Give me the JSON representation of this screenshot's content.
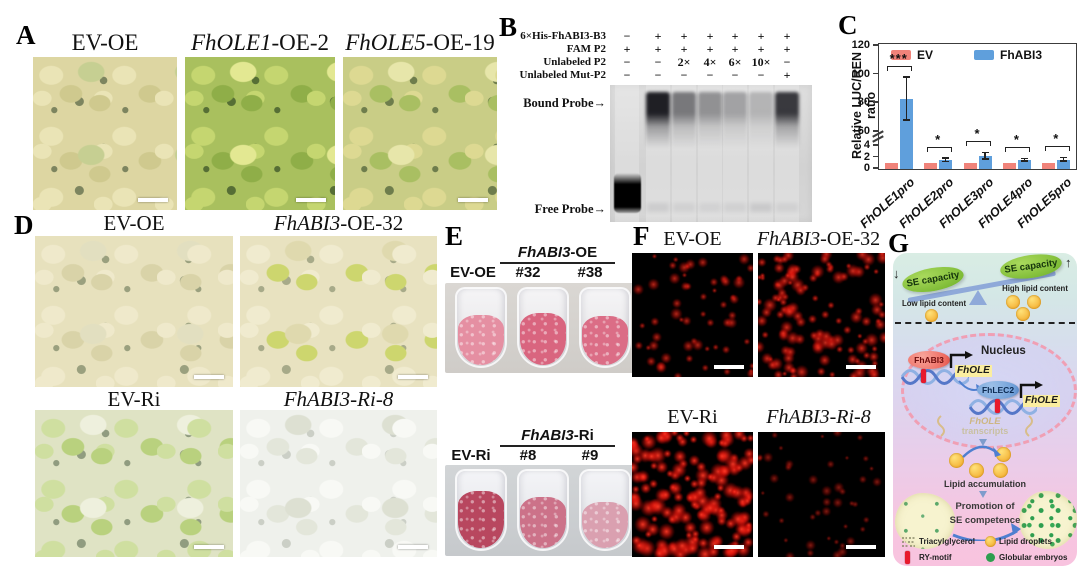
{
  "colors": {
    "ev": "#f0837a",
    "fhabi3": "#5f9fdc",
    "dna_blue": "#5577c8",
    "ry_red": "#e8192c",
    "arrow_blue": "#4f7fd0",
    "green_embryo": "#2e9e4f"
  },
  "panels": {
    "A": {
      "label": "A",
      "images": [
        {
          "label_parts": [
            {
              "t": "EV-OE",
              "i": false
            }
          ]
        },
        {
          "label_parts": [
            {
              "t": "FhOLE1",
              "i": true
            },
            {
              "t": "-OE-2",
              "i": false
            }
          ]
        },
        {
          "label_parts": [
            {
              "t": "FhOLE5",
              "i": true
            },
            {
              "t": "-OE-19",
              "i": false
            }
          ]
        }
      ]
    },
    "B": {
      "label": "B",
      "marker_rows": [
        {
          "name": "6×His-FhABI3-B3",
          "values": [
            "−",
            "+",
            "+",
            "+",
            "+",
            "+",
            "+"
          ]
        },
        {
          "name": "FAM P2",
          "values": [
            "+",
            "+",
            "+",
            "+",
            "+",
            "+",
            "+"
          ]
        },
        {
          "name": "Unlabeled P2",
          "values": [
            "−",
            "−",
            "2×",
            "4×",
            "6×",
            "10×",
            "−"
          ]
        },
        {
          "name": "Unlabeled Mut-P2",
          "values": [
            "−",
            "−",
            "−",
            "−",
            "−",
            "−",
            "+"
          ]
        }
      ],
      "bound_probe_label": "Bound Probe→",
      "free_probe_label": "Free Probe→",
      "lanes": [
        {
          "bound": 0,
          "free": 1
        },
        {
          "bound": 0.92,
          "free": 0.1
        },
        {
          "bound": 0.5,
          "free": 0.08
        },
        {
          "bound": 0.38,
          "free": 0.07
        },
        {
          "bound": 0.3,
          "free": 0.08
        },
        {
          "bound": 0.22,
          "free": 0.12
        },
        {
          "bound": 0.8,
          "free": 0.08
        }
      ]
    },
    "D": {
      "label": "D",
      "images": [
        {
          "label_parts": [
            {
              "t": "EV-OE",
              "i": false
            }
          ]
        },
        {
          "label_parts": [
            {
              "t": "FhABI3",
              "i": true
            },
            {
              "t": "-OE-32",
              "i": false
            }
          ]
        },
        {
          "label_parts": [
            {
              "t": "EV-Ri",
              "i": false
            }
          ]
        },
        {
          "label_parts": [
            {
              "t": "FhABI3-Ri-8",
              "i": true
            }
          ]
        }
      ]
    },
    "E": {
      "label": "E",
      "groups": [
        {
          "header_parts": [
            {
              "t": "FhABI3",
              "i": true
            },
            {
              "t": "-OE",
              "i": false
            }
          ],
          "left_label": "EV-OE",
          "replicates": [
            "#32",
            "#38"
          ],
          "tube_shades": [
            "#e58fa2",
            "#d9657f",
            "#db6d86"
          ],
          "levels": [
            0.62,
            0.64,
            0.6
          ]
        },
        {
          "header_parts": [
            {
              "t": "FhABI3",
              "i": true
            },
            {
              "t": "-Ri",
              "i": false
            }
          ],
          "left_label": "EV-Ri",
          "replicates": [
            "#8",
            "#9"
          ],
          "tube_shades": [
            "#b8475f",
            "#cc7289",
            "#daa0b0"
          ],
          "levels": [
            0.7,
            0.62,
            0.56
          ]
        }
      ]
    },
    "F": {
      "label": "F",
      "images": [
        {
          "label_parts": [
            {
              "t": "EV-OE",
              "i": false
            }
          ],
          "dots": 58,
          "size": [
            1.2,
            3
          ],
          "glow": 0.75,
          "seed": 7
        },
        {
          "label_parts": [
            {
              "t": "FhABI3",
              "i": true
            },
            {
              "t": "-OE-32",
              "i": false
            }
          ],
          "dots": 125,
          "size": [
            1.2,
            3.4
          ],
          "glow": 0.85,
          "seed": 13
        },
        {
          "label_parts": [
            {
              "t": "EV-Ri",
              "i": false
            }
          ],
          "dots": 155,
          "size": [
            1.6,
            4.2
          ],
          "glow": 1,
          "seed": 29
        },
        {
          "label_parts": [
            {
              "t": "FhABI3-Ri-8",
              "i": true
            }
          ],
          "dots": 45,
          "size": [
            1,
            2.6
          ],
          "glow": 0.55,
          "seed": 41
        }
      ]
    },
    "G": {
      "label": "G",
      "seesaw": {
        "left_arrow": "↓",
        "left_label": "SE capacity",
        "left_sub": "Low lipid content",
        "right_label": "SE capacity",
        "right_arrow": "↑",
        "right_sub": "High lipid content"
      },
      "nucleus_label": "Nucleus",
      "tf1": "FhABI3",
      "gene1": "FhOLE",
      "tf2": "FhLEC2",
      "gene2": "FhOLE",
      "transcripts": [
        "FhOLE",
        "transcripts"
      ],
      "lipid_label": "Lipid accumulation",
      "promotion": [
        "Promotion of",
        "SE competence"
      ],
      "legend": [
        {
          "icon": "triacylglycerol-icon",
          "label": "Triacylglycerol"
        },
        {
          "icon": "lipid-droplets-icon",
          "label": "Lipid droplets"
        },
        {
          "icon": "ry-motif-icon",
          "label": "RY-motif"
        },
        {
          "icon": "globular-embryos-icon",
          "label": "Globular embryos"
        }
      ]
    }
  },
  "chart_data": {
    "type": "bar",
    "title": "",
    "ylabel": "Relative LUC/REN ratio",
    "xlabel": "",
    "categories": [
      "FhOLE1pro",
      "FhOLE2pro",
      "FhOLE3pro",
      "FhOLE4pro",
      "FhOLE5pro"
    ],
    "series": [
      {
        "name": "EV",
        "color": "#f0837a",
        "values": [
          1,
          1,
          1,
          1,
          1
        ],
        "errors": [
          0,
          0,
          0,
          0,
          0
        ]
      },
      {
        "name": "FhABI3",
        "color": "#5f9fdc",
        "values": [
          83,
          1.5,
          2.2,
          1.5,
          1.6
        ],
        "errors": [
          15,
          0.3,
          0.6,
          0.25,
          0.3
        ]
      }
    ],
    "significance": [
      "***",
      "*",
      "*",
      "*",
      "*"
    ],
    "y_axis": {
      "ylim": [
        0,
        120
      ],
      "lower_ticks": [
        0,
        2,
        4
      ],
      "upper_ticks": [
        60,
        80,
        100,
        120
      ],
      "break_between": [
        4,
        60
      ]
    },
    "legend_position": "top-inside",
    "grid": false
  }
}
